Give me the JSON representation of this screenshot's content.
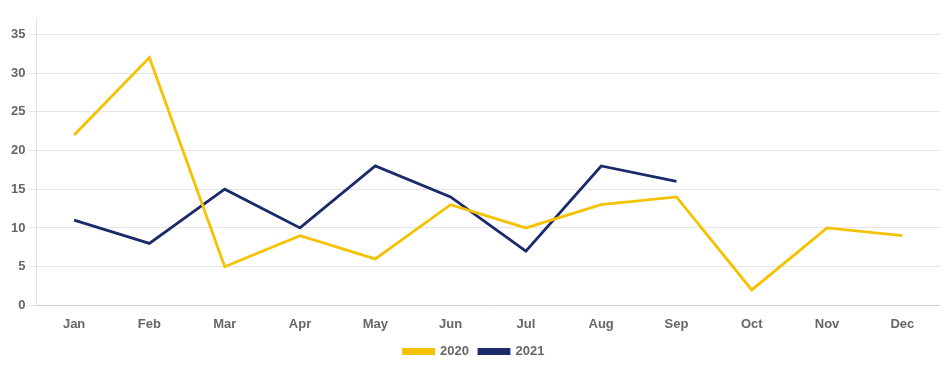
{
  "chart_data": {
    "type": "line",
    "categories": [
      "Jan",
      "Feb",
      "Mar",
      "Apr",
      "May",
      "Jun",
      "Jul",
      "Aug",
      "Sep",
      "Oct",
      "Nov",
      "Dec"
    ],
    "series": [
      {
        "name": "2020",
        "color": "#F5C200",
        "values": [
          22,
          32,
          5,
          9,
          6,
          13,
          10,
          13,
          14,
          2,
          10,
          9
        ]
      },
      {
        "name": "2021",
        "color": "#1B2A6B",
        "values": [
          11,
          8,
          15,
          10,
          18,
          14,
          7,
          18,
          16,
          null,
          null,
          null
        ]
      }
    ],
    "ylim": [
      0,
      37
    ],
    "yticks": [
      0,
      5,
      10,
      15,
      20,
      25,
      30,
      35
    ],
    "grid": true,
    "legend": "bottom"
  }
}
